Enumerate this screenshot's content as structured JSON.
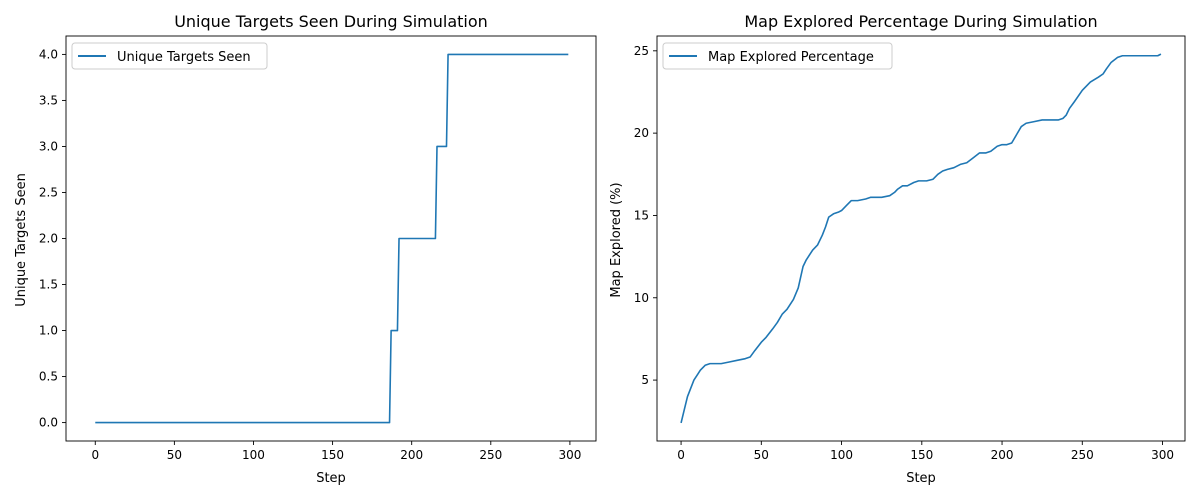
{
  "chart_data": [
    {
      "type": "line",
      "title": "Unique Targets Seen During Simulation",
      "xlabel": "Step",
      "ylabel": "Unique Targets Seen",
      "xlim": [
        -18.5,
        316.5
      ],
      "ylim": [
        -0.2,
        4.2
      ],
      "xticks": [
        0,
        50,
        100,
        150,
        200,
        250,
        300
      ],
      "yticks": [
        0.0,
        0.5,
        1.0,
        1.5,
        2.0,
        2.5,
        3.0,
        3.5,
        4.0
      ],
      "ytick_labels": [
        "0.0",
        "0.5",
        "1.0",
        "1.5",
        "2.0",
        "2.5",
        "3.0",
        "3.5",
        "4.0"
      ],
      "grid": false,
      "legend": "top-left",
      "series": [
        {
          "name": "Unique Targets Seen",
          "color": "#1f77b4",
          "x": [
            0,
            186,
            187,
            191,
            192,
            215,
            216,
            222,
            223,
            299
          ],
          "y": [
            0,
            0,
            1,
            1,
            2,
            2,
            3,
            3,
            4,
            4
          ]
        }
      ]
    },
    {
      "type": "line",
      "title": "Map Explored Percentage During Simulation",
      "xlabel": "Step",
      "ylabel": "Map Explored (%)",
      "xlim": [
        -15,
        314
      ],
      "ylim": [
        1.3,
        25.9
      ],
      "xticks": [
        0,
        50,
        100,
        150,
        200,
        250,
        300
      ],
      "yticks": [
        5,
        10,
        15,
        20,
        25
      ],
      "ytick_labels": [
        "5",
        "10",
        "15",
        "20",
        "25"
      ],
      "grid": false,
      "legend": "top-left",
      "series": [
        {
          "name": "Map Explored Percentage",
          "color": "#1f77b4",
          "x": [
            0,
            2,
            4,
            6,
            8,
            10,
            12,
            15,
            18,
            20,
            25,
            30,
            35,
            40,
            43,
            46,
            50,
            53,
            57,
            60,
            63,
            66,
            70,
            73,
            76,
            78,
            82,
            85,
            88,
            90,
            92,
            95,
            98,
            100,
            103,
            106,
            110,
            115,
            118,
            120,
            125,
            130,
            133,
            135,
            138,
            141,
            145,
            148,
            150,
            153,
            157,
            160,
            163,
            166,
            170,
            174,
            178,
            182,
            186,
            190,
            193,
            197,
            200,
            203,
            206,
            209,
            212,
            215,
            220,
            225,
            230,
            235,
            238,
            240,
            242,
            245,
            250,
            255,
            260,
            263,
            265,
            268,
            272,
            275,
            280,
            285,
            290,
            294,
            297,
            299
          ],
          "y": [
            2.4,
            3.2,
            4.0,
            4.5,
            5.0,
            5.3,
            5.6,
            5.9,
            6.0,
            6.0,
            6.0,
            6.1,
            6.2,
            6.3,
            6.4,
            6.8,
            7.3,
            7.6,
            8.1,
            8.5,
            9.0,
            9.3,
            9.9,
            10.6,
            11.9,
            12.3,
            12.9,
            13.2,
            13.8,
            14.3,
            14.9,
            15.1,
            15.2,
            15.3,
            15.6,
            15.9,
            15.9,
            16.0,
            16.1,
            16.1,
            16.1,
            16.2,
            16.4,
            16.6,
            16.8,
            16.8,
            17.0,
            17.1,
            17.1,
            17.1,
            17.2,
            17.5,
            17.7,
            17.8,
            17.9,
            18.1,
            18.2,
            18.5,
            18.8,
            18.8,
            18.9,
            19.2,
            19.3,
            19.3,
            19.4,
            19.9,
            20.4,
            20.6,
            20.7,
            20.8,
            20.8,
            20.8,
            20.9,
            21.1,
            21.5,
            21.9,
            22.6,
            23.1,
            23.4,
            23.6,
            23.9,
            24.3,
            24.6,
            24.7,
            24.7,
            24.7,
            24.7,
            24.7,
            24.7,
            24.8
          ]
        }
      ]
    }
  ]
}
